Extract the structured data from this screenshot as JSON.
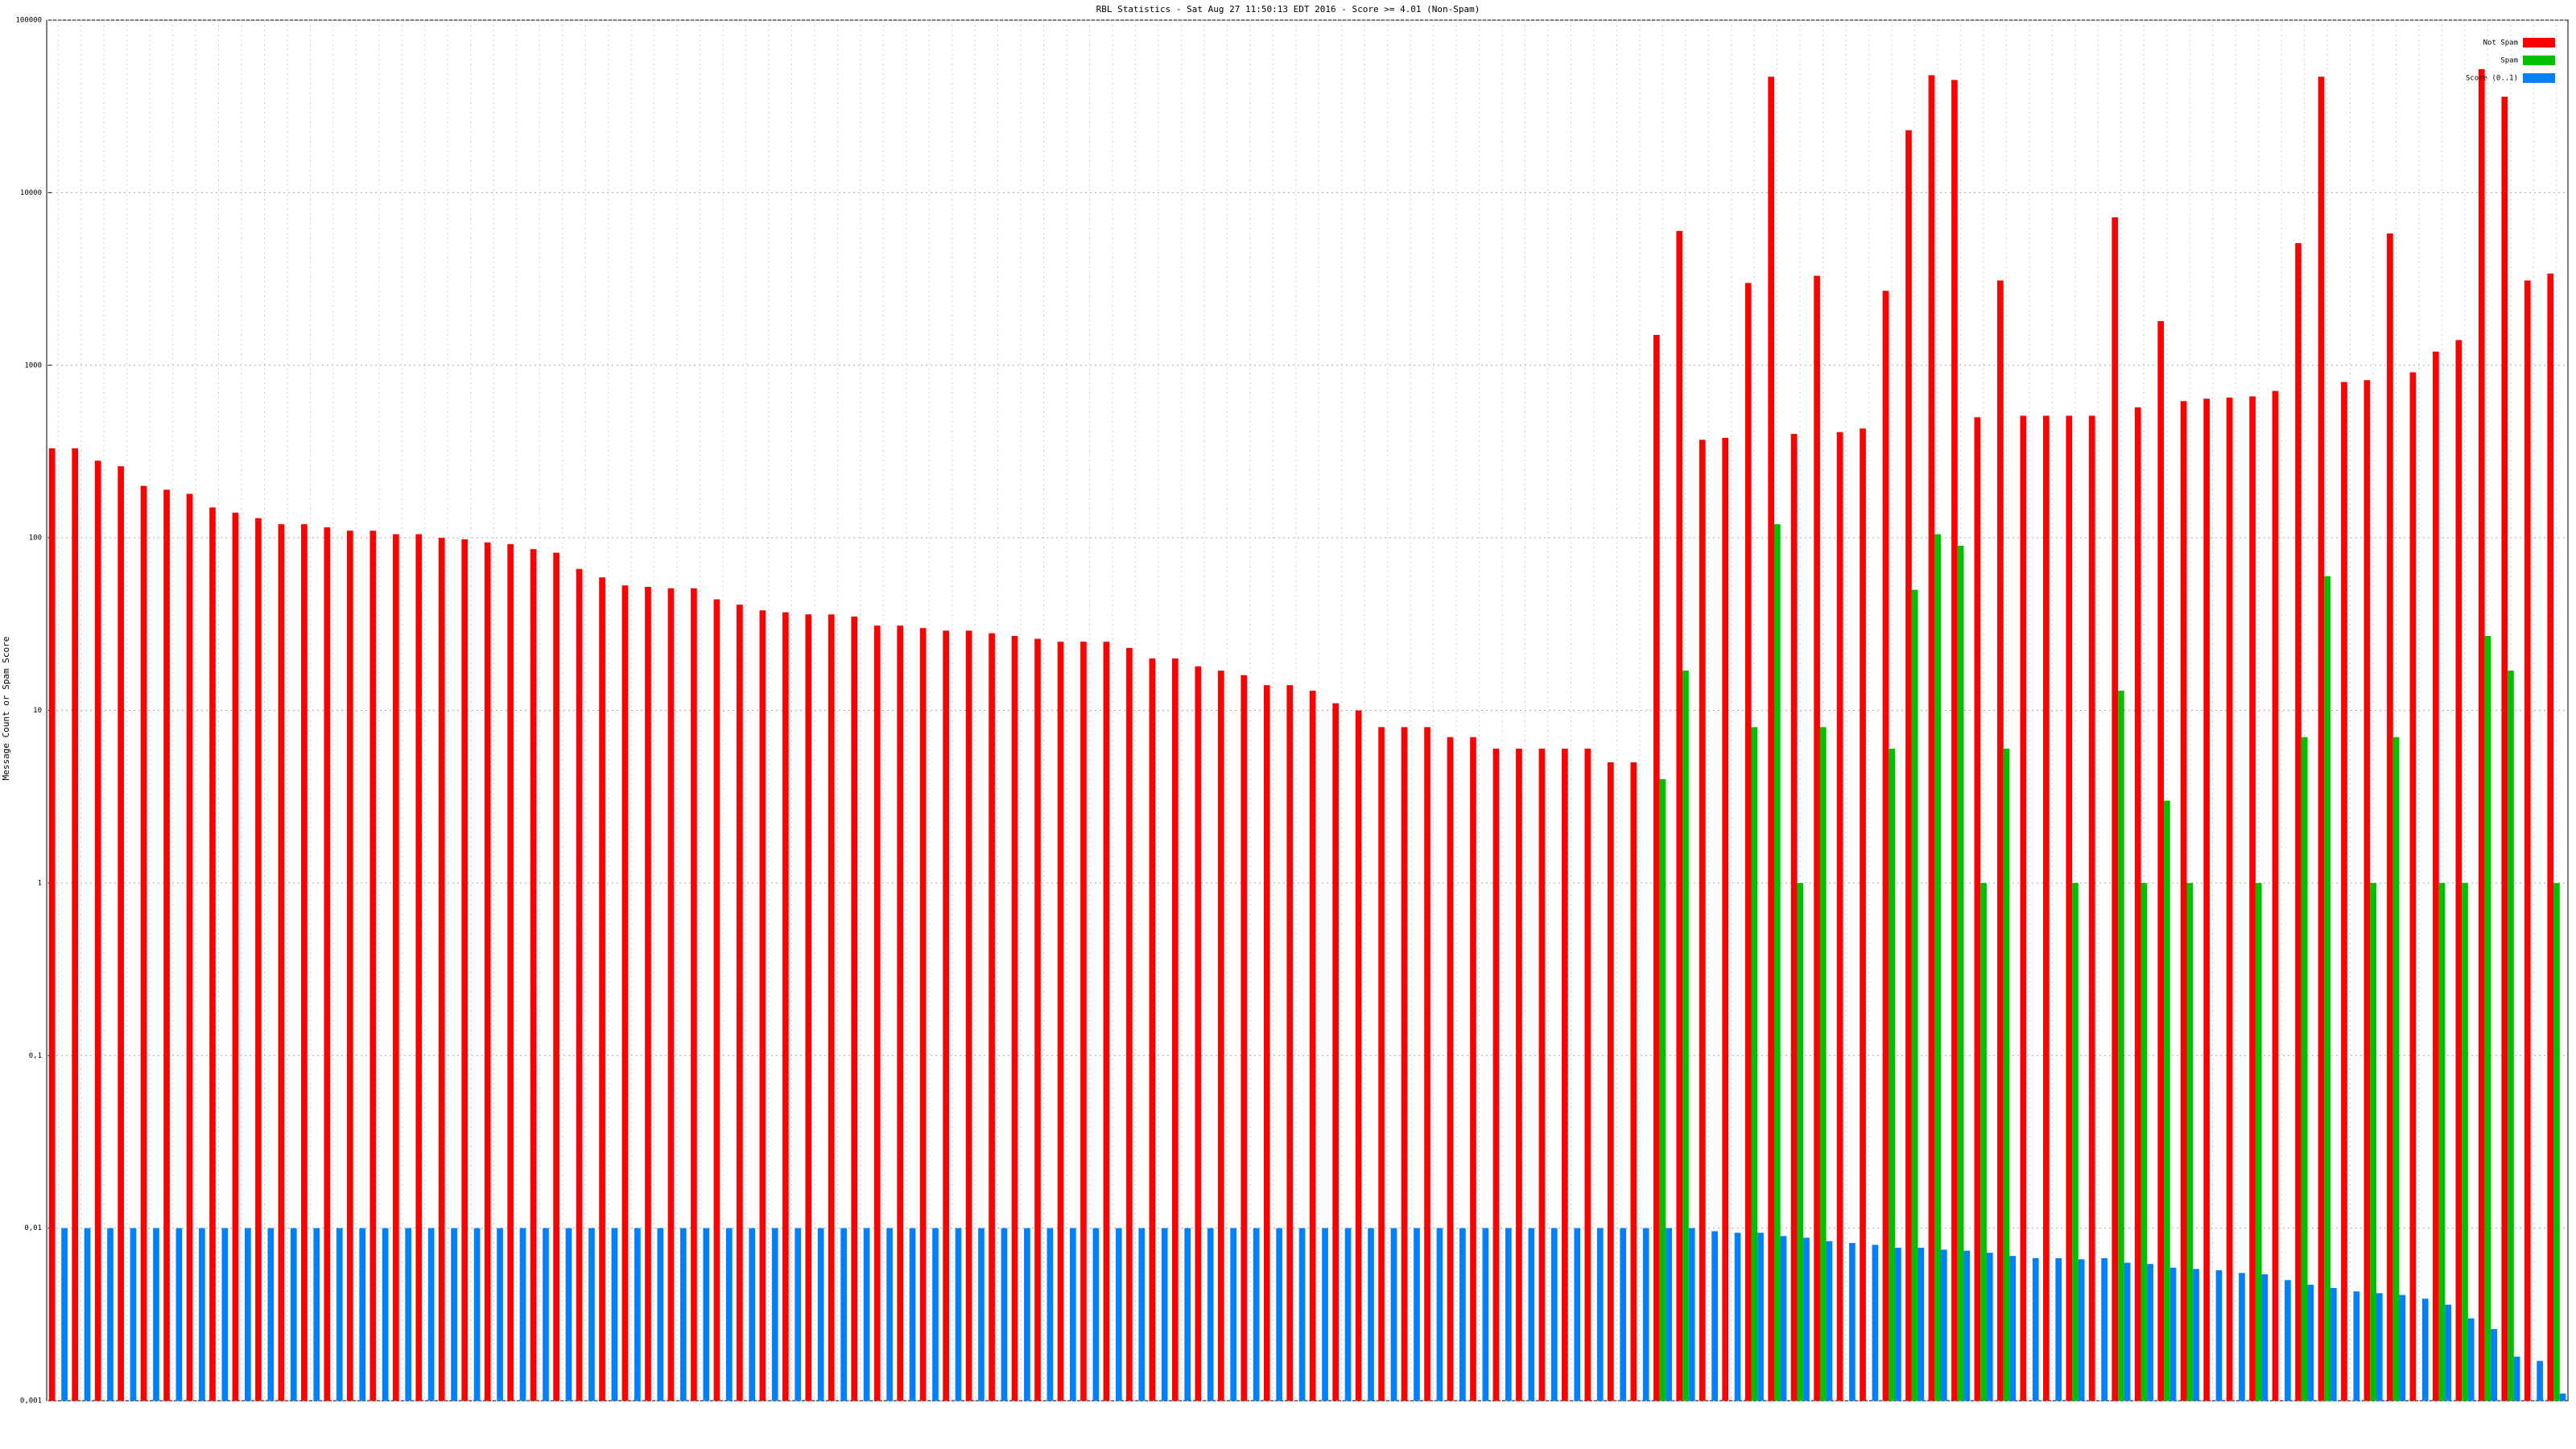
{
  "chart_data": {
    "type": "bar",
    "title": "RBL Statistics - Sat Aug 27 11:50:13 EDT 2016 - Score >= 4.01 (Non-Spam)",
    "y_label": "Message Count or Spam Score",
    "log_y": true,
    "grid": true,
    "legend": "upper right",
    "ylim": [
      0.001,
      100000
    ],
    "yticks": [
      {
        "value": 0.001,
        "label": "0,001"
      },
      {
        "value": 0.01,
        "label": "0,01"
      },
      {
        "value": 0.1,
        "label": "0,1"
      },
      1,
      10,
      100,
      1000,
      10000,
      100000
    ],
    "categories": [
      null,
      null,
      null,
      null,
      null,
      null,
      null,
      null,
      null,
      null,
      null,
      null,
      null,
      null,
      null,
      null,
      null,
      null,
      null,
      null,
      null,
      null,
      null,
      null,
      null,
      null,
      null,
      null,
      null,
      null,
      null,
      null,
      null,
      null,
      null,
      null,
      null,
      null,
      null,
      null,
      null,
      null,
      null,
      null,
      null,
      null,
      null,
      null,
      null,
      null,
      null,
      null,
      null,
      null,
      null,
      null,
      null,
      null,
      null,
      null,
      null,
      null,
      null,
      null,
      null,
      null,
      null,
      null,
      null,
      null,
      null,
      null,
      null,
      null,
      null,
      null,
      null,
      null,
      null,
      null,
      null,
      null,
      null,
      null,
      null,
      null,
      null,
      null,
      null,
      null,
      null,
      null,
      null,
      null,
      null,
      null,
      null,
      null,
      null,
      null,
      null,
      null,
      null,
      null,
      null,
      null,
      null,
      null,
      null,
      null
    ],
    "series": [
      {
        "name": "Not Spam",
        "color": "#ff0000",
        "values": [
          330,
          330,
          280,
          260,
          200,
          190,
          180,
          150,
          140,
          130,
          120,
          120,
          115,
          110,
          110,
          105,
          105,
          100,
          98,
          94,
          92,
          86,
          82,
          66,
          59,
          53,
          52,
          51,
          51,
          44,
          41,
          38,
          37,
          36,
          36,
          35,
          31,
          31,
          30,
          29,
          29,
          28,
          27,
          26,
          25,
          25,
          25,
          23,
          20,
          20,
          18,
          17,
          16,
          14,
          14,
          13,
          11,
          10,
          8,
          8,
          8,
          7,
          7,
          6,
          6,
          6,
          6,
          6,
          5,
          5,
          1500,
          6000,
          370,
          380,
          3000,
          47000,
          400,
          3300,
          410,
          430,
          2700,
          23000,
          48000,
          45000,
          500,
          3100,
          510,
          510,
          510,
          510,
          7200,
          570,
          1800,
          620,
          640,
          650,
          660,
          710,
          5100,
          47000,
          800,
          820,
          5800,
          910,
          1200,
          1400,
          52000,
          36000,
          3100,
          3400
        ]
      },
      {
        "name": "Spam",
        "color": "#00c000",
        "values": [
          null,
          null,
          null,
          null,
          null,
          null,
          null,
          null,
          null,
          null,
          null,
          null,
          null,
          null,
          null,
          null,
          null,
          null,
          null,
          null,
          null,
          null,
          null,
          null,
          null,
          null,
          null,
          null,
          null,
          null,
          null,
          null,
          null,
          null,
          null,
          null,
          null,
          null,
          null,
          null,
          null,
          null,
          null,
          null,
          null,
          null,
          null,
          null,
          null,
          null,
          null,
          null,
          null,
          null,
          null,
          null,
          null,
          null,
          null,
          null,
          null,
          null,
          null,
          null,
          null,
          null,
          null,
          null,
          null,
          null,
          4,
          17,
          null,
          null,
          8,
          120,
          1,
          8,
          null,
          null,
          6,
          50,
          105,
          90,
          1,
          6,
          null,
          null,
          1,
          null,
          13,
          1,
          3,
          1,
          null,
          null,
          1,
          null,
          7,
          60,
          null,
          1,
          7,
          null,
          1,
          1,
          27,
          17,
          null,
          1
        ]
      },
      {
        "name": "Score (0..1)",
        "color": "#0080ff",
        "values": [
          0.01,
          0.01,
          0.01,
          0.01,
          0.01,
          0.01,
          0.01,
          0.01,
          0.01,
          0.01,
          0.01,
          0.01,
          0.01,
          0.01,
          0.01,
          0.01,
          0.01,
          0.01,
          0.01,
          0.01,
          0.01,
          0.01,
          0.01,
          0.01,
          0.01,
          0.01,
          0.01,
          0.01,
          0.01,
          0.01,
          0.01,
          0.01,
          0.01,
          0.01,
          0.01,
          0.01,
          0.01,
          0.01,
          0.01,
          0.01,
          0.01,
          0.01,
          0.01,
          0.01,
          0.01,
          0.01,
          0.01,
          0.01,
          0.01,
          0.01,
          0.01,
          0.01,
          0.01,
          0.01,
          0.01,
          0.01,
          0.01,
          0.01,
          0.01,
          0.01,
          0.01,
          0.01,
          0.01,
          0.01,
          0.01,
          0.01,
          0.01,
          0.01,
          0.01,
          0.01,
          0.01,
          0.01,
          0.0096,
          0.0094,
          0.0094,
          0.009,
          0.0088,
          0.0084,
          0.0082,
          0.008,
          0.0077,
          0.0077,
          0.0075,
          0.0074,
          0.0072,
          0.0069,
          0.0067,
          0.0067,
          0.0066,
          0.0067,
          0.0063,
          0.0062,
          0.0059,
          0.0058,
          0.0057,
          0.0055,
          0.0054,
          0.005,
          0.0047,
          0.0045,
          0.0043,
          0.0042,
          0.0041,
          0.0039,
          0.0036,
          0.003,
          0.0026,
          0.0018,
          0.0017,
          0.0011
        ]
      }
    ]
  }
}
